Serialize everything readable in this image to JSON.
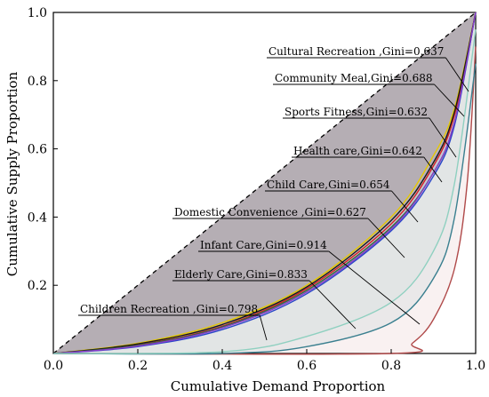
{
  "chart_data": {
    "type": "line",
    "xlabel": "Cumulative Demand Proportion",
    "ylabel": "Cumulative Supply Proportion",
    "xlim": [
      0,
      1
    ],
    "ylim": [
      0,
      1
    ],
    "xticks": [
      "0.0",
      "0.2",
      "0.4",
      "0.6",
      "0.8",
      "1.0"
    ],
    "yticks": [
      "0.2",
      "0.4",
      "0.6",
      "0.8",
      "1.0"
    ],
    "grid": false,
    "equality_line": {
      "x": [
        0,
        1
      ],
      "y": [
        0,
        1
      ],
      "style": "dashed",
      "color": "#000000"
    },
    "series": [
      {
        "name": "Cultural Recreation ,Gini=0.637",
        "color": "#e6c800",
        "gini": 0.637,
        "x": [
          0,
          0.2,
          0.4,
          0.6,
          0.8,
          0.9,
          0.95,
          1.0
        ],
        "y": [
          0,
          0.03,
          0.09,
          0.2,
          0.4,
          0.58,
          0.72,
          1.0
        ]
      },
      {
        "name": "Community Meal,Gini=0.688",
        "color": "#d62020",
        "gini": 0.688,
        "x": [
          0,
          0.2,
          0.4,
          0.6,
          0.8,
          0.9,
          0.95,
          1.0
        ],
        "y": [
          0,
          0.025,
          0.08,
          0.19,
          0.38,
          0.55,
          0.7,
          1.0
        ]
      },
      {
        "name": "Sports Fitness,Gini=0.632",
        "color": "#1a1a1a",
        "gini": 0.632,
        "x": [
          0,
          0.2,
          0.4,
          0.6,
          0.8,
          0.9,
          0.95,
          1.0
        ],
        "y": [
          0,
          0.028,
          0.085,
          0.195,
          0.39,
          0.56,
          0.71,
          1.0
        ]
      },
      {
        "name": "Health care,Gini=0.642",
        "color": "#2f6b3a",
        "gini": 0.642,
        "x": [
          0,
          0.2,
          0.4,
          0.6,
          0.8,
          0.9,
          0.95,
          1.0
        ],
        "y": [
          0,
          0.024,
          0.078,
          0.185,
          0.37,
          0.53,
          0.68,
          1.0
        ]
      },
      {
        "name": "Child  Care,Gini=0.654",
        "color": "#2a45c8",
        "gini": 0.654,
        "x": [
          0,
          0.2,
          0.4,
          0.6,
          0.8,
          0.9,
          0.95,
          1.0
        ],
        "y": [
          0,
          0.02,
          0.07,
          0.175,
          0.36,
          0.52,
          0.67,
          1.0
        ]
      },
      {
        "name": "Domestic  Convenience ,Gini=0.627",
        "color": "#8a3cc8",
        "gini": 0.627,
        "x": [
          0,
          0.2,
          0.4,
          0.6,
          0.8,
          0.9,
          0.95,
          1.0
        ],
        "y": [
          0,
          0.022,
          0.075,
          0.18,
          0.365,
          0.53,
          0.68,
          1.0
        ]
      },
      {
        "name": "Infant Care,Gini=0.914",
        "color": "#b04a4a",
        "gini": 0.914,
        "x": [
          0,
          0.8,
          0.85,
          0.9,
          0.95,
          0.98,
          1.0
        ],
        "y": [
          0,
          0.0,
          0.03,
          0.1,
          0.25,
          0.5,
          0.9
        ]
      },
      {
        "name": "Elderly Care,Gini=0.833",
        "color": "#3a7f8f",
        "gini": 0.833,
        "x": [
          0,
          0.4,
          0.6,
          0.8,
          0.9,
          0.95,
          1.0
        ],
        "y": [
          0,
          0.0,
          0.02,
          0.09,
          0.22,
          0.4,
          0.85
        ]
      },
      {
        "name": "Children Recreation ,Gini=0.798",
        "color": "#8fd0c0",
        "gini": 0.798,
        "x": [
          0,
          0.4,
          0.6,
          0.8,
          0.9,
          0.95,
          1.0
        ],
        "y": [
          0,
          0.005,
          0.05,
          0.15,
          0.3,
          0.5,
          0.95
        ]
      }
    ]
  }
}
